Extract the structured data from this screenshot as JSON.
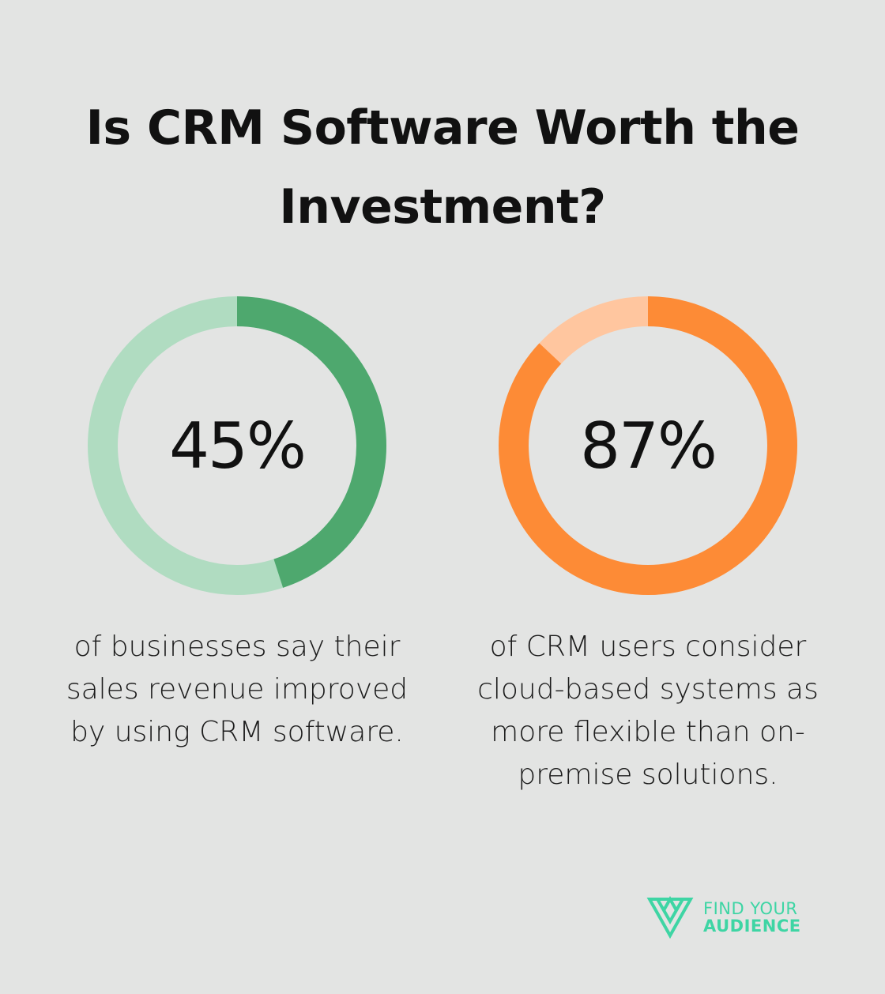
{
  "title": "Is CRM Software Worth the Investment?",
  "chart_data": [
    {
      "type": "donut",
      "value": 45,
      "label": "45%",
      "description": "of businesses say their sales revenue improved by using CRM software.",
      "colors": {
        "filled": "#4ea86e",
        "remaining": "#b0dcc1"
      }
    },
    {
      "type": "donut",
      "value": 87,
      "label": "87%",
      "description": "of CRM users consider cloud-based systems as more flexible than on-premise solutions.",
      "colors": {
        "filled": "#fd8b36",
        "remaining": "#ffc69f"
      }
    }
  ],
  "brand": {
    "line1": "FIND YOUR",
    "line2": "AUDIENCE",
    "color": "#3ed5a4",
    "icon": "triangle-logo-icon"
  },
  "background": "#e3e4e3"
}
